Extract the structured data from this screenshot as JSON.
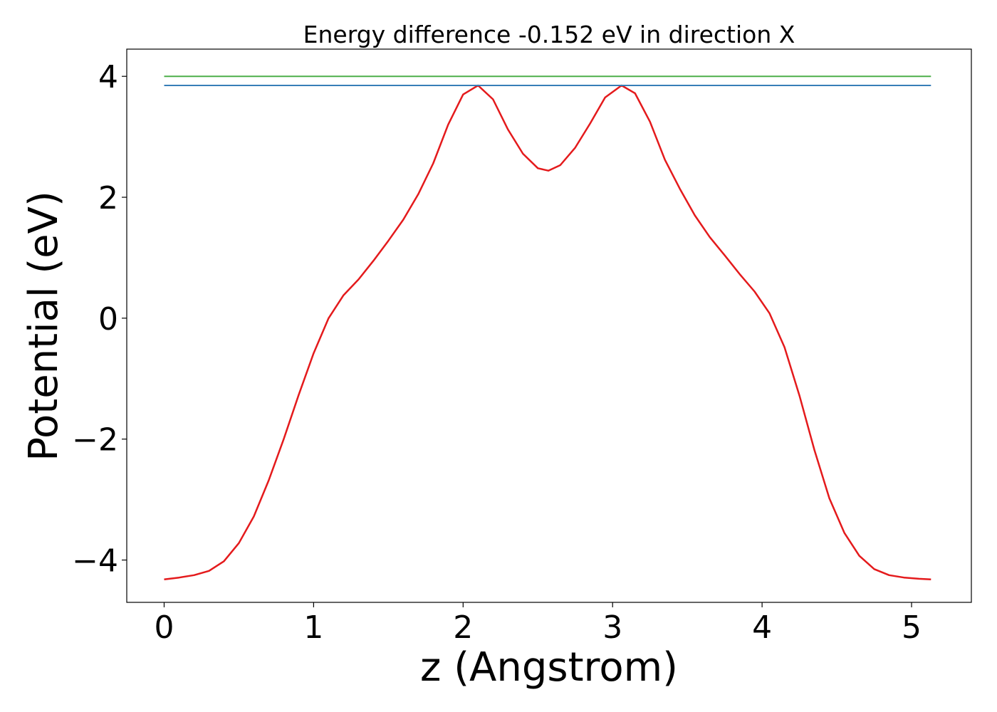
{
  "chart_data": {
    "type": "line",
    "title": "Energy difference -0.152 eV in direction X",
    "xlabel": "z (Angstrom)",
    "ylabel": "Potential (eV)",
    "xlim": [
      -0.25,
      5.4
    ],
    "ylim": [
      -4.7,
      4.45
    ],
    "xticks": [
      0,
      1,
      2,
      3,
      4,
      5
    ],
    "xtick_labels": [
      "0",
      "1",
      "2",
      "3",
      "4",
      "5"
    ],
    "yticks": [
      -4,
      -2,
      0,
      2,
      4
    ],
    "ytick_labels": [
      "−4",
      "−2",
      "0",
      "2",
      "4"
    ],
    "grid": false,
    "series": [
      {
        "color": "#e41a1c",
        "x": [
          0,
          0.1,
          0.2,
          0.3,
          0.4,
          0.5,
          0.6,
          0.7,
          0.8,
          0.9,
          1.0,
          1.1,
          1.2,
          1.3,
          1.4,
          1.5,
          1.6,
          1.7,
          1.8,
          1.9,
          2.0,
          2.1,
          2.2,
          2.3,
          2.4,
          2.5,
          2.57,
          2.65,
          2.75,
          2.85,
          2.95,
          3.06,
          3.15,
          3.25,
          3.35,
          3.45,
          3.55,
          3.65,
          3.75,
          3.85,
          3.95,
          4.05,
          4.15,
          4.25,
          4.35,
          4.45,
          4.55,
          4.65,
          4.75,
          4.85,
          4.95,
          5.05,
          5.13
        ],
        "y": [
          -4.32,
          -4.29,
          -4.25,
          -4.18,
          -4.02,
          -3.72,
          -3.28,
          -2.68,
          -2.0,
          -1.27,
          -0.58,
          0.0,
          0.38,
          0.64,
          0.95,
          1.28,
          1.63,
          2.05,
          2.56,
          3.2,
          3.7,
          3.85,
          3.62,
          3.12,
          2.72,
          2.48,
          2.44,
          2.53,
          2.82,
          3.22,
          3.65,
          3.85,
          3.72,
          3.25,
          2.62,
          2.14,
          1.7,
          1.34,
          1.04,
          0.73,
          0.44,
          0.08,
          -0.48,
          -1.28,
          -2.18,
          -2.98,
          -3.55,
          -3.93,
          -4.15,
          -4.25,
          -4.29,
          -4.31,
          -4.32
        ]
      },
      {
        "color": "#4daf4a",
        "x": [
          0,
          5.13
        ],
        "y": [
          4.0,
          4.0
        ]
      },
      {
        "color": "#377eb8",
        "x": [
          0,
          5.13
        ],
        "y": [
          3.85,
          3.85
        ]
      }
    ]
  }
}
